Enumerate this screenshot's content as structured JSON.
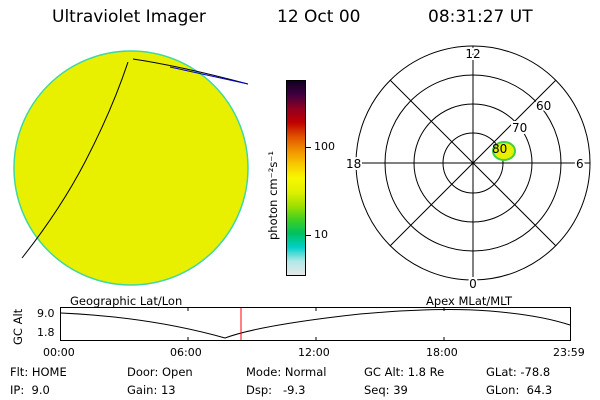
{
  "header": {
    "instrument": "Ultraviolet Imager",
    "date": "12 Oct 00",
    "time": "08:31:27 UT"
  },
  "colorbar": {
    "unit_label": "photon cm⁻²s⁻¹",
    "ticks": [
      "100",
      "10"
    ],
    "colors": [
      "#e8e8e8",
      "#b0e8e8",
      "#00d0c8",
      "#00c060",
      "#40d020",
      "#a0e000",
      "#e0f000",
      "#f8f800",
      "#f8c800",
      "#f09000",
      "#e05000",
      "#c00000",
      "#900020",
      "#400040",
      "#100020"
    ]
  },
  "polar_plot": {
    "mlt_labels": [
      "12",
      "18",
      "6",
      "0"
    ],
    "lat_labels": [
      "80",
      "70",
      "60"
    ]
  },
  "timeline": {
    "left_title": "Geographic Lat/Lon",
    "right_title": "Apex MLat/MLT",
    "axis_label": "GC Alt",
    "y_ticks": [
      "9.0",
      "1.8"
    ],
    "x_ticks": [
      "00:00",
      "06:00",
      "12:00",
      "18:00",
      "23:59"
    ],
    "marker_color": "#ff0000"
  },
  "info": {
    "flt": {
      "label": "Flt:",
      "value": "HOME"
    },
    "ip": {
      "label": "IP:",
      "value": "9.0"
    },
    "door": {
      "label": "Door:",
      "value": "Open"
    },
    "gain": {
      "label": "Gain:",
      "value": "13"
    },
    "mode": {
      "label": "Mode:",
      "value": "Normal"
    },
    "dsp": {
      "label": "Dsp:",
      "value": "-9.3"
    },
    "gcalt": {
      "label": "GC Alt:",
      "value": "1.8 Re"
    },
    "seq": {
      "label": "Seq:",
      "value": "39"
    },
    "glat": {
      "label": "GLat:",
      "value": "-78.8"
    },
    "glon": {
      "label": "GLon:",
      "value": "64.3"
    }
  },
  "colors": {
    "earth_disk": "#e8f000",
    "earth_rim": "#40d8a0",
    "aurora_spot": "#e8f000",
    "aurora_rim": "#40d040",
    "orbit_line": "#0000d0"
  }
}
